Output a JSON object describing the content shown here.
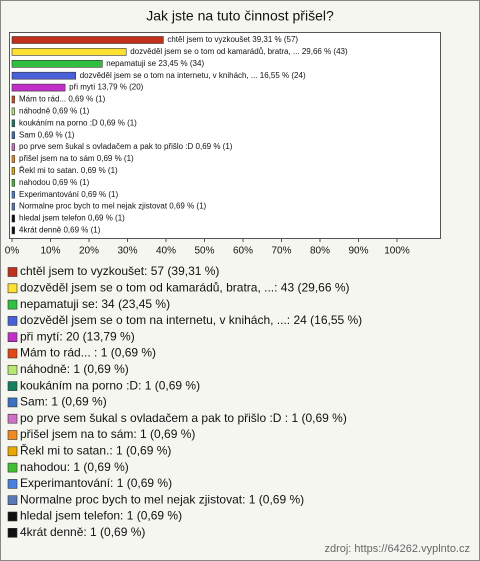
{
  "chart_data": {
    "type": "bar",
    "orientation": "horizontal",
    "title": "Jak jste na tuto činnost přišel?",
    "values": [
      39.31,
      29.66,
      23.45,
      16.55,
      13.79,
      0.69,
      0.69,
      0.69,
      0.69,
      0.69,
      0.69,
      0.69,
      0.69,
      0.69,
      0.69,
      0.69,
      0.69
    ],
    "value_labels": [
      "chtěl jsem to vyzkoušet 39,31 % (57)",
      "dozvěděl jsem se o tom od kamarádů, bratra, ... 29,66 % (43)",
      "nepamatuji se 23,45 % (34)",
      "dozvěděl jsem se o tom na internetu, v knihách, ... 16,55 % (24)",
      "při mytí 13,79 % (20)",
      "Mám to rád... 0,69 % (1)",
      "náhodně 0,69 % (1)",
      "koukáním na porno :D 0,69 % (1)",
      "Sam 0,69 % (1)",
      "po prve sem šukal s ovladačem a pak to přišlo :D 0,69 % (1)",
      "přišel jsem na to sám 0,69 % (1)",
      "Řekl mi to satan. 0,69 % (1)",
      "nahodou 0,69 % (1)",
      "Experimantování 0,69 % (1)",
      "Normalne proc bych to mel nejak zjistovat 0,69 % (1)",
      "hledal jsem telefon 0,69 % (1)",
      "4krát denně 0,69 % (1)"
    ],
    "legend_labels": [
      "chtěl jsem to vyzkoušet: 57 (39,31 %)",
      "dozvěděl jsem se o tom od kamarádů, bratra, ...: 43 (29,66 %)",
      "nepamatuji se: 34 (23,45 %)",
      "dozvěděl jsem se o tom na internetu, v knihách, ...: 24 (16,55 %)",
      "při mytí: 20 (13,79 %)",
      "Mám to rád... : 1 (0,69 %)",
      "náhodně: 1 (0,69 %)",
      "koukáním na porno :D: 1 (0,69 %)",
      "Sam: 1 (0,69 %)",
      "po prve sem šukal s ovladačem a pak to přišlo :D : 1 (0,69 %)",
      "přišel jsem na to sám: 1 (0,69 %)",
      "Řekl mi to satan.: 1 (0,69 %)",
      "nahodou: 1 (0,69 %)",
      "Experimantování: 1 (0,69 %)",
      "Normalne proc bych to mel nejak zjistovat: 1 (0,69 %)",
      "hledal jsem telefon: 1 (0,69 %)",
      "4krát denně: 1 (0,69 %)"
    ],
    "colors": [
      "#c0301c",
      "#ffe030",
      "#30c040",
      "#4a60d8",
      "#c030c8",
      "#e04818",
      "#b8e870",
      "#108060",
      "#3a70c0",
      "#d070c8",
      "#f08a20",
      "#e8a800",
      "#40c030",
      "#4a80e0",
      "#5878b8",
      "#101010",
      "#101010"
    ],
    "xlim": [
      0,
      100
    ],
    "xticks": [
      {
        "value": 0,
        "label": "0%"
      },
      {
        "value": 10,
        "label": "10%"
      },
      {
        "value": 20,
        "label": "20%"
      },
      {
        "value": 30,
        "label": "30%"
      },
      {
        "value": 40,
        "label": "40%"
      },
      {
        "value": 50,
        "label": "50%"
      },
      {
        "value": 60,
        "label": "60%"
      },
      {
        "value": 70,
        "label": "70%"
      },
      {
        "value": 80,
        "label": "80%"
      },
      {
        "value": 90,
        "label": "90%"
      },
      {
        "value": 100,
        "label": "100%"
      }
    ],
    "source": "zdroj: https://64262.vyplnto.cz"
  }
}
